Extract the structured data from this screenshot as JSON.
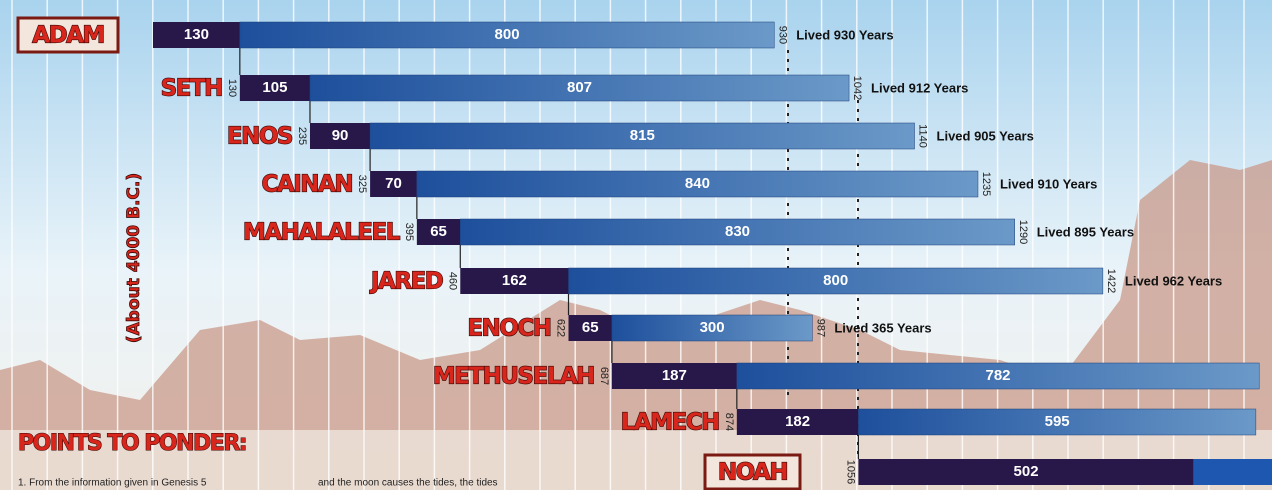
{
  "side_label": "(About 4000 B.C.)",
  "rows": [
    {
      "name": "ADAM",
      "first": 130,
      "second": 800,
      "end": 930,
      "lived": "Lived 930 Years"
    },
    {
      "name": "SETH",
      "start": 130,
      "first": 105,
      "second": 807,
      "end": 1042,
      "lived": "Lived 912 Years"
    },
    {
      "name": "ENOS",
      "start": 235,
      "first": 90,
      "second": 815,
      "end": 1140,
      "lived": "Lived 905 Years"
    },
    {
      "name": "CAINAN",
      "start": 325,
      "first": 70,
      "second": 840,
      "end": 1235,
      "lived": "Lived 910 Years"
    },
    {
      "name": "MAHALALEEL",
      "start": 395,
      "first": 65,
      "second": 830,
      "end": 1290,
      "lived": "Lived 895 Years"
    },
    {
      "name": "JARED",
      "start": 460,
      "first": 162,
      "second": 800,
      "end": 1422,
      "lived": "Lived 962 Years"
    },
    {
      "name": "ENOCH",
      "start": 622,
      "first": 65,
      "second": 300,
      "end": 987,
      "lived": "Lived 365 Years"
    },
    {
      "name": "METHUSELAH",
      "start": 687,
      "first": 187,
      "second": 782
    },
    {
      "name": "LAMECH",
      "start": 874,
      "first": 182,
      "second": 595
    },
    {
      "name": "NOAH",
      "start": 1056,
      "first": 502
    }
  ],
  "ponder": {
    "title": "POINTS TO PONDER:",
    "lines": [
      "1.  From the information given in Genesis 5",
      "and the moon causes the tides, the tides"
    ]
  }
}
